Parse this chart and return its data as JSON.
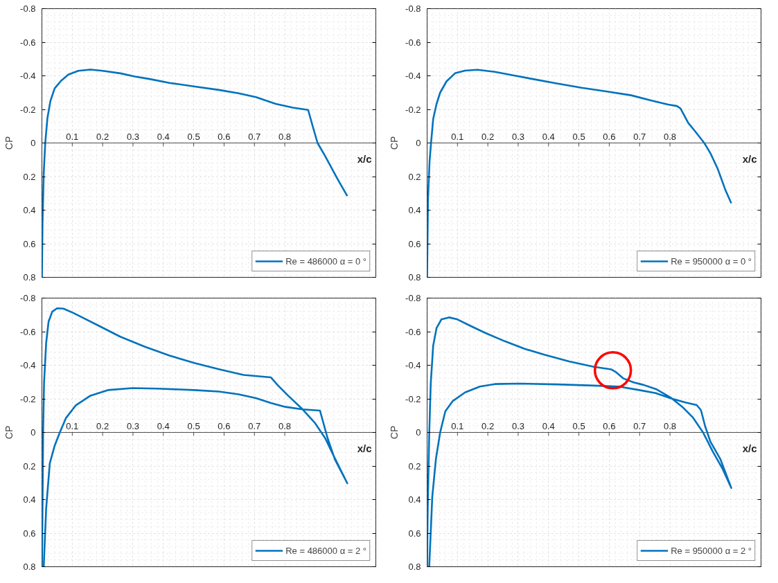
{
  "chart_data": [
    {
      "type": "line",
      "xlabel": "x/c",
      "ylabel": "CP",
      "xlim": [
        0,
        1.1
      ],
      "ylim": [
        0.8,
        -0.8
      ],
      "xticks": [
        0.1,
        0.2,
        0.3,
        0.4,
        0.5,
        0.6,
        0.7,
        0.8
      ],
      "yticks": [
        -0.8,
        -0.6,
        -0.4,
        -0.2,
        0,
        0.2,
        0.4,
        0.6,
        0.8
      ],
      "grid": true,
      "legend": "bottom right",
      "series": [
        {
          "name": "Re = 486000 α = 0 °",
          "color": "#0072bd",
          "x": [
            0,
            0.002,
            0.006,
            0.011,
            0.018,
            0.028,
            0.042,
            0.063,
            0.087,
            0.12,
            0.16,
            0.2,
            0.258,
            0.306,
            0.355,
            0.42,
            0.5,
            0.583,
            0.648,
            0.705,
            0.77,
            0.827,
            0.877,
            0.892,
            0.908,
            0.933,
            0.973,
            1.006
          ],
          "values": [
            0.8,
            0.48,
            0.18,
            0,
            -0.146,
            -0.25,
            -0.325,
            -0.37,
            -0.407,
            -0.43,
            -0.437,
            -0.43,
            -0.415,
            -0.396,
            -0.381,
            -0.358,
            -0.337,
            -0.316,
            -0.296,
            -0.273,
            -0.233,
            -0.21,
            -0.197,
            -0.1,
            0,
            0.078,
            0.212,
            0.316
          ]
        }
      ]
    },
    {
      "type": "line",
      "xlabel": "x/c",
      "ylabel": "CP",
      "xlim": [
        0,
        1.1
      ],
      "ylim": [
        0.8,
        -0.8
      ],
      "xticks": [
        0.1,
        0.2,
        0.3,
        0.4,
        0.5,
        0.6,
        0.7,
        0.8
      ],
      "yticks": [
        -0.8,
        -0.6,
        -0.4,
        -0.2,
        0,
        0.2,
        0.4,
        0.6,
        0.8
      ],
      "grid": true,
      "legend": "bottom right",
      "series": [
        {
          "name": "Re = 950000 α = 0 °",
          "color": "#0072bd",
          "x": [
            0,
            0.003,
            0.008,
            0.013,
            0.02,
            0.031,
            0.043,
            0.064,
            0.092,
            0.125,
            0.166,
            0.223,
            0.28,
            0.345,
            0.427,
            0.509,
            0.59,
            0.672,
            0.737,
            0.794,
            0.823,
            0.835,
            0.86,
            0.884,
            0.913,
            0.933,
            0.958,
            0.982,
            1.002
          ],
          "values": [
            0.8,
            0.337,
            0.112,
            0,
            -0.142,
            -0.232,
            -0.3,
            -0.367,
            -0.415,
            -0.431,
            -0.436,
            -0.424,
            -0.404,
            -0.382,
            -0.355,
            -0.329,
            -0.307,
            -0.284,
            -0.254,
            -0.229,
            -0.22,
            -0.205,
            -0.12,
            -0.067,
            0,
            0.06,
            0.157,
            0.277,
            0.359
          ]
        }
      ]
    },
    {
      "type": "line",
      "xlabel": "x/c",
      "ylabel": "CP",
      "xlim": [
        0,
        1.1
      ],
      "ylim": [
        0.8,
        -0.8
      ],
      "xticks": [
        0.1,
        0.2,
        0.3,
        0.4,
        0.5,
        0.6,
        0.7,
        0.8
      ],
      "yticks": [
        -0.8,
        -0.6,
        -0.4,
        -0.2,
        0,
        0.2,
        0.4,
        0.6,
        0.8
      ],
      "grid": true,
      "legend": "bottom right",
      "series": [
        {
          "name": "Re = 486000 α = 2 °",
          "color": "#0072bd",
          "x": [
            0,
            0.002,
            0.004,
            0.007,
            0.014,
            0.022,
            0.034,
            0.05,
            0.071,
            0.103,
            0.136,
            0.193,
            0.258,
            0.339,
            0.42,
            0.502,
            0.583,
            0.664,
            0.754,
            0.778,
            0.811,
            0.859,
            0.9,
            0.933,
            0.965,
            1.006,
            0.965,
            0.941,
            0.916,
            0.859,
            0.802,
            0.754,
            0.705,
            0.648,
            0.583,
            0.502,
            0.38,
            0.298,
            0.217,
            0.16,
            0.111,
            0.079,
            0.059,
            0.042,
            0.026,
            0.014,
            0.006
          ],
          "values": [
            0.8,
            0.452,
            0,
            -0.294,
            -0.533,
            -0.66,
            -0.719,
            -0.739,
            -0.737,
            -0.712,
            -0.682,
            -0.63,
            -0.57,
            -0.51,
            -0.458,
            -0.413,
            -0.376,
            -0.342,
            -0.328,
            -0.279,
            -0.219,
            -0.137,
            -0.055,
            0.034,
            0.154,
            0.303,
            0.16,
            0.034,
            -0.13,
            -0.137,
            -0.152,
            -0.175,
            -0.204,
            -0.227,
            -0.243,
            -0.252,
            -0.261,
            -0.264,
            -0.252,
            -0.219,
            -0.16,
            -0.085,
            0,
            0.079,
            0.184,
            0.452,
            0.8
          ]
        }
      ]
    },
    {
      "type": "line",
      "xlabel": "x/c",
      "ylabel": "CP",
      "xlim": [
        0,
        1.1
      ],
      "ylim": [
        0.8,
        -0.8
      ],
      "xticks": [
        0.1,
        0.2,
        0.3,
        0.4,
        0.5,
        0.6,
        0.7,
        0.8
      ],
      "yticks": [
        -0.8,
        -0.6,
        -0.4,
        -0.2,
        0,
        0.2,
        0.4,
        0.6,
        0.8
      ],
      "grid": true,
      "legend": "bottom right",
      "series": [
        {
          "name": "Re = 950000 α = 2 °",
          "color": "#0072bd",
          "x": [
            0,
            0.002,
            0.007,
            0.012,
            0.02,
            0.031,
            0.047,
            0.072,
            0.1,
            0.141,
            0.19,
            0.256,
            0.321,
            0.386,
            0.468,
            0.549,
            0.607,
            0.623,
            0.647,
            0.68,
            0.713,
            0.754,
            0.802,
            0.843,
            0.876,
            0.909,
            0.941,
            0.974,
            1.002,
            0.966,
            0.933,
            0.916,
            0.902,
            0.888,
            0.851,
            0.806,
            0.753,
            0.696,
            0.631,
            0.549,
            0.427,
            0.304,
            0.223,
            0.174,
            0.125,
            0.084,
            0.06,
            0.043,
            0.029,
            0.017,
            0.007
          ],
          "values": [
            0.8,
            0.459,
            0.009,
            -0.291,
            -0.516,
            -0.621,
            -0.673,
            -0.685,
            -0.673,
            -0.636,
            -0.594,
            -0.543,
            -0.498,
            -0.463,
            -0.423,
            -0.391,
            -0.375,
            -0.358,
            -0.321,
            -0.298,
            -0.283,
            -0.258,
            -0.208,
            -0.148,
            -0.088,
            0,
            0.114,
            0.219,
            0.331,
            0.159,
            0.054,
            -0.036,
            -0.133,
            -0.163,
            -0.178,
            -0.201,
            -0.234,
            -0.253,
            -0.273,
            -0.279,
            -0.286,
            -0.291,
            -0.288,
            -0.273,
            -0.238,
            -0.186,
            -0.126,
            0,
            0.159,
            0.384,
            0.8
          ]
        }
      ]
    }
  ]
}
